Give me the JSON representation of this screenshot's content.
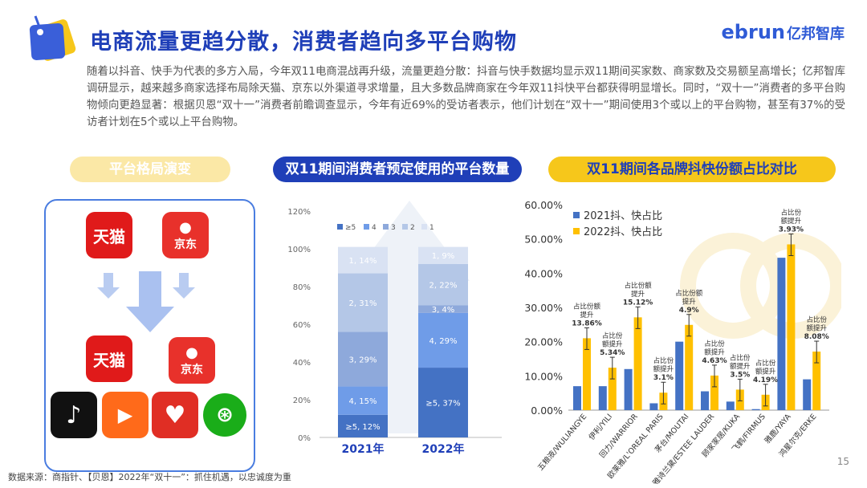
{
  "header": {
    "title": "电商流量更趋分散，消费者趋向多平台购物",
    "brand_latin": "ebrun",
    "brand_cn": "亿邦智库"
  },
  "intro": "随着以抖音、快手为代表的多方入局，今年双11电商混战再升级，流量更趋分散：抖音与快手数据均显示双11期间买家数、商家数及交易额呈高增长；亿邦智库调研显示，越来越多商家选择布局除天猫、京东以外渠道寻求增量，且大多数品牌商家在今年双11抖快平台都获得明显增长。同时，“双十一”消费者的多平台购物倾向更趋显著：根据贝恩“双十一”消费者前瞻调查显示，今年有近69%的受访者表示，他们计划在“双十一”期间使用3个或以上的平台购物，甚至有37%的受访者计划在5个或以上平台购物。",
  "sections": {
    "left": "平台格局演变",
    "middle": "双11期间消费者预定使用的平台数量",
    "right": "双11期间各品牌抖快份额占比对比"
  },
  "platforms": {
    "tmall": "天猫",
    "jd": "京东"
  },
  "footer": {
    "source": "数据来源：商指针、【贝恩】2022年“双十一”：抓住机遇，以忠诚度为重",
    "page": "15"
  },
  "colors": {
    "title_blue": "#1f3fb8",
    "accent_yellow": "#f6c71b",
    "bar_blue": "#4472c4",
    "bar_yellow": "#ffc000"
  },
  "chart_data": [
    {
      "type": "bar",
      "stacked": true,
      "categories": [
        "2021年",
        "2022年"
      ],
      "ylim": [
        0,
        120
      ],
      "yticks": [
        "0%",
        "20%",
        "40%",
        "60%",
        "80%",
        "100%",
        "120%"
      ],
      "legend": [
        "≥5",
        "4",
        "3",
        "2",
        "1"
      ],
      "legend_position": "top",
      "series": [
        {
          "name": "≥5",
          "values": [
            12,
            37
          ],
          "labels": [
            "≥5, 12%",
            "≥5, 37%"
          ],
          "color": "#4472c4"
        },
        {
          "name": "4",
          "values": [
            15,
            29
          ],
          "labels": [
            "4, 15%",
            "4, 29%"
          ],
          "color": "#6f9ce8"
        },
        {
          "name": "3",
          "values": [
            29,
            4
          ],
          "labels": [
            "3, 29%",
            "3, 4%"
          ],
          "color": "#8ea9db"
        },
        {
          "name": "2",
          "values": [
            31,
            22
          ],
          "labels": [
            "2, 31%",
            "2, 22%"
          ],
          "color": "#b4c7e7"
        },
        {
          "name": "1",
          "values": [
            14,
            9
          ],
          "labels": [
            "1, 14%",
            "1, 9%"
          ],
          "color": "#d9e2f3"
        }
      ]
    },
    {
      "type": "bar",
      "categories": [
        "五粮液/WULIANGYE",
        "伊利/YILI",
        "回力/WARRIOR",
        "欧莱雅/L'OREAL PARIS",
        "茅台/MOUTAI",
        "雅诗兰黛/ESTEE LAUDER",
        "顾家家居/KUKA",
        "飞鹤/FIRMUS",
        "雅鹿/YAYA",
        "鸿星尔克/ERKE"
      ],
      "ylim": [
        0,
        60
      ],
      "yticks": [
        "0.00%",
        "10.00%",
        "20.00%",
        "30.00%",
        "40.00%",
        "50.00%",
        "60.00%"
      ],
      "legend_position": "top-left",
      "series": [
        {
          "name": "2021抖、快占比",
          "values": [
            7.0,
            7.0,
            12.0,
            2.0,
            20.0,
            5.5,
            2.5,
            0.3,
            44.5,
            9.0
          ],
          "color": "#4472c4"
        },
        {
          "name": "2022抖、快占比",
          "values": [
            21.0,
            12.4,
            27.1,
            5.1,
            24.9,
            10.1,
            6.0,
            4.5,
            48.4,
            17.1
          ],
          "color": "#ffc000"
        }
      ],
      "annotations": [
        {
          "text": [
            "占比份额",
            "提升",
            "13.86%"
          ]
        },
        {
          "text": [
            "占比份",
            "额提升",
            "5.34%"
          ]
        },
        {
          "text": [
            "占比份额",
            "提升",
            "15.12%"
          ]
        },
        {
          "text": [
            "占比份",
            "额提升",
            "3.1%"
          ]
        },
        {
          "text": [
            "占比份额",
            "提升",
            "4.9%"
          ]
        },
        {
          "text": [
            "占比份",
            "额提升",
            "4.63%"
          ]
        },
        {
          "text": [
            "占比份",
            "额提升",
            "3.5%"
          ]
        },
        {
          "text": [
            "占比份",
            "额提升",
            "4.19%"
          ]
        },
        {
          "text": [
            "占比份",
            "额提升",
            "3.93%"
          ]
        },
        {
          "text": [
            "占比份",
            "额提升",
            "8.08%"
          ]
        }
      ]
    }
  ]
}
